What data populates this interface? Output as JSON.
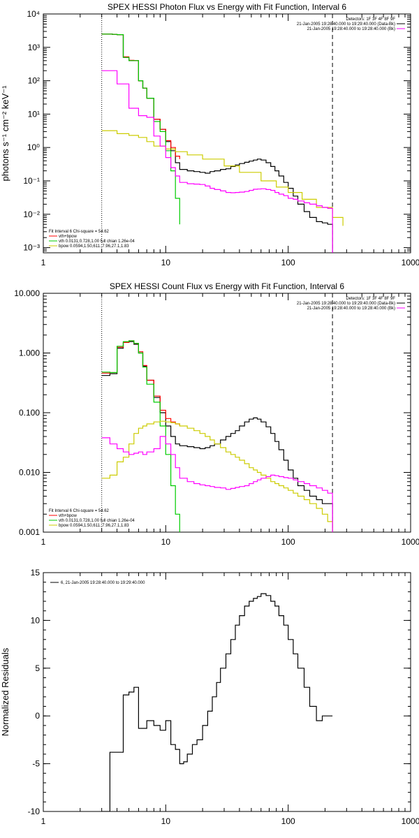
{
  "chart_data": [
    {
      "type": "line",
      "title": "SPEX HESSI Photon Flux vs Energy with Fit Function, Interval 6",
      "ylabel": "photons s⁻¹ cm⁻² keV⁻¹",
      "xlabel": "",
      "xscale": "log",
      "yscale": "log",
      "xlim": [
        1,
        1000
      ],
      "ylim": [
        0.0007,
        10000
      ],
      "x_ticks": [
        {
          "v": 1,
          "label": "1"
        },
        {
          "v": 10,
          "label": "10"
        },
        {
          "v": 100,
          "label": "100"
        },
        {
          "v": 1000,
          "label": "1000"
        }
      ],
      "y_ticks": [
        {
          "v": 0.001,
          "label": "10⁻³"
        },
        {
          "v": 0.01,
          "label": "10⁻²"
        },
        {
          "v": 0.1,
          "label": "10⁻¹"
        },
        {
          "v": 1,
          "label": "10⁰"
        },
        {
          "v": 10,
          "label": "10¹"
        },
        {
          "v": 100,
          "label": "10²"
        },
        {
          "v": 1000,
          "label": "10³"
        },
        {
          "v": 10000,
          "label": "10⁴"
        }
      ],
      "vlines": [
        {
          "x": 3,
          "style": "dotted"
        },
        {
          "x": 230,
          "style": "dashed"
        }
      ],
      "legend_tr": [
        "Detectors: 1F 3F 4F 8F 9F",
        "21-Jan-2005 19:28:40.000 to 19:29:40.000 (Data-Bk)",
        "21-Jan-2005 19:28:40.000 to 19:28:40.000 (Bk)"
      ],
      "legend_tr_colors": [
        "",
        "#000000",
        "#ff00ff"
      ],
      "legend_bl": [
        "Fit Interval 6    Chi-square = 54.62",
        "vth+bpow",
        "vth 0.0131,0.728,1.00  full chian 1.26e-04",
        "bpow 0.0594,1.50,611.,7.96,27.1,1.83"
      ],
      "legend_bl_colors": [
        "",
        "#ff0000",
        "#00cc00",
        "#cccc00"
      ],
      "series": [
        {
          "color": "#000000",
          "x": [
            3,
            3.33,
            3.67,
            4,
            4.5,
            5,
            5.5,
            6,
            6.5,
            7,
            8,
            9,
            10,
            11,
            12,
            13,
            15,
            17,
            19,
            21,
            23,
            25,
            28,
            31,
            34,
            37,
            40,
            44,
            48,
            52,
            56,
            60,
            66,
            72,
            78,
            84,
            92,
            100,
            110,
            120,
            135,
            150,
            170,
            190,
            210,
            230
          ],
          "y": [
            2500,
            2500,
            2450,
            2400,
            500,
            400,
            400,
            100,
            60,
            30,
            7,
            3.5,
            1.5,
            0.8,
            0.35,
            0.22,
            0.2,
            0.19,
            0.18,
            0.17,
            0.19,
            0.2,
            0.22,
            0.23,
            0.27,
            0.3,
            0.33,
            0.36,
            0.39,
            0.42,
            0.45,
            0.42,
            0.35,
            0.27,
            0.2,
            0.14,
            0.09,
            0.06,
            0.035,
            0.02,
            0.012,
            0.008,
            0.006,
            0.0055,
            0.005,
            0.0007
          ]
        },
        {
          "color": "#ff0000",
          "x": [
            3,
            3.33,
            3.67,
            4,
            4.5,
            5,
            5.5,
            6,
            6.5,
            7,
            8,
            9,
            10,
            11,
            12,
            13
          ],
          "y": [
            2500,
            2500,
            2450,
            2400,
            520,
            410,
            400,
            100,
            60,
            30,
            7,
            3.5,
            1.6,
            1.0,
            0.55,
            0.45
          ]
        },
        {
          "color": "#00cc00",
          "x": [
            3,
            3.33,
            3.67,
            4,
            4.5,
            5,
            5.5,
            6,
            6.5,
            7,
            8,
            9,
            10,
            11,
            12,
            13
          ],
          "y": [
            2500,
            2500,
            2450,
            2400,
            500,
            400,
            400,
            100,
            60,
            30,
            6,
            3,
            0.8,
            0.2,
            0.03,
            0.005
          ]
        },
        {
          "color": "#cccc00",
          "x": [
            3,
            4,
            5,
            6,
            7,
            8,
            10,
            12,
            15,
            20,
            30,
            40,
            60,
            80,
            100,
            130,
            170,
            230,
            280
          ],
          "y": [
            3.2,
            2.6,
            2.3,
            2.0,
            1.5,
            1.1,
            0.9,
            0.75,
            0.6,
            0.45,
            0.28,
            0.18,
            0.1,
            0.065,
            0.045,
            0.028,
            0.016,
            0.008,
            0.0045
          ]
        },
        {
          "color": "#ff00ff",
          "x": [
            3,
            4,
            5,
            6,
            7,
            8,
            9,
            10,
            11,
            12,
            13,
            15,
            17,
            19,
            21,
            23,
            25,
            28,
            31,
            34,
            37,
            40,
            44,
            48,
            52,
            56,
            60,
            66,
            72,
            78,
            84,
            92,
            100,
            110,
            120,
            135,
            150,
            170,
            190,
            210,
            230
          ],
          "y": [
            200,
            80,
            15,
            9,
            8,
            2.2,
            1.1,
            0.5,
            0.25,
            0.14,
            0.09,
            0.082,
            0.08,
            0.078,
            0.07,
            0.06,
            0.055,
            0.05,
            0.045,
            0.044,
            0.045,
            0.046,
            0.048,
            0.052,
            0.056,
            0.057,
            0.058,
            0.055,
            0.052,
            0.045,
            0.04,
            0.036,
            0.03,
            0.028,
            0.025,
            0.022,
            0.02,
            0.018,
            0.016,
            0.015,
            0.0007
          ]
        }
      ]
    },
    {
      "type": "line",
      "title": "SPEX HESSI Count Flux vs Energy with Fit Function, Interval 6",
      "ylabel": "",
      "xlabel": "",
      "xscale": "log",
      "yscale": "log",
      "xlim": [
        1,
        1000
      ],
      "ylim": [
        0.001,
        10
      ],
      "x_ticks": [
        {
          "v": 1,
          "label": "1"
        },
        {
          "v": 10,
          "label": "10"
        },
        {
          "v": 100,
          "label": "100"
        },
        {
          "v": 1000,
          "label": "1000"
        }
      ],
      "y_ticks": [
        {
          "v": 0.001,
          "label": "0.001"
        },
        {
          "v": 0.01,
          "label": "0.010"
        },
        {
          "v": 0.1,
          "label": "0.100"
        },
        {
          "v": 1,
          "label": "1.000"
        },
        {
          "v": 10,
          "label": "10.000"
        }
      ],
      "vlines": [
        {
          "x": 3,
          "style": "dotted"
        },
        {
          "x": 230,
          "style": "dashed"
        }
      ],
      "legend_tr": [
        "Detectors: 1F 3F 4F 8F 9F",
        "21-Jan-2005 19:28:40.000 to 19:29:40.000 (Data-Bk)",
        "21-Jan-2005 19:28:40.000 to 19:28:40.000 (Bk)"
      ],
      "legend_tr_colors": [
        "",
        "#000000",
        "#ff00ff"
      ],
      "legend_bl": [
        "Fit Interval 6    Chi-square = 54.62",
        "vth+bpow",
        "vth 0.0131,0.728,1.00  full chian 1.26e-04",
        "bpow 0.0594,1.50,611.,7.96,27.1,1.83"
      ],
      "legend_bl_colors": [
        "",
        "#ff0000",
        "#00cc00",
        "#cccc00"
      ],
      "series": [
        {
          "color": "#000000",
          "x": [
            3,
            3.5,
            4,
            4.5,
            5,
            5.5,
            6,
            6.5,
            7,
            8,
            9,
            10,
            11,
            12,
            13,
            15,
            17,
            19,
            21,
            23,
            25,
            28,
            31,
            34,
            37,
            40,
            44,
            48,
            52,
            56,
            60,
            66,
            72,
            78,
            84,
            92,
            100,
            110,
            120,
            135,
            150,
            170,
            190,
            210,
            230
          ],
          "y": [
            0.42,
            0.45,
            1.2,
            1.5,
            1.55,
            1.4,
            1.0,
            0.6,
            0.35,
            0.18,
            0.1,
            0.06,
            0.04,
            0.03,
            0.028,
            0.027,
            0.026,
            0.025,
            0.026,
            0.028,
            0.03,
            0.035,
            0.04,
            0.045,
            0.05,
            0.06,
            0.07,
            0.078,
            0.082,
            0.078,
            0.07,
            0.058,
            0.045,
            0.033,
            0.024,
            0.016,
            0.011,
            0.008,
            0.006,
            0.005,
            0.004,
            0.0035,
            0.003,
            0.003,
            0.001
          ]
        },
        {
          "color": "#ff0000",
          "x": [
            3,
            3.5,
            4,
            4.5,
            5,
            5.5,
            6,
            6.5,
            7,
            8,
            9,
            10,
            11,
            12,
            13
          ],
          "y": [
            0.46,
            0.47,
            1.25,
            1.5,
            1.6,
            1.45,
            1.05,
            0.62,
            0.35,
            0.19,
            0.11,
            0.08,
            0.07,
            0.065,
            0.06
          ]
        },
        {
          "color": "#00cc00",
          "x": [
            3,
            3.5,
            4,
            4.5,
            5,
            5.5,
            6,
            6.5,
            7,
            8,
            9,
            10,
            11,
            12,
            13
          ],
          "y": [
            0.48,
            0.47,
            1.3,
            1.55,
            1.6,
            1.45,
            1.0,
            0.58,
            0.3,
            0.15,
            0.06,
            0.02,
            0.006,
            0.002,
            0.001
          ]
        },
        {
          "color": "#cccc00",
          "x": [
            3,
            3.5,
            4,
            4.5,
            5,
            5.5,
            6,
            6.5,
            7,
            8,
            9,
            10,
            11,
            12,
            13,
            15,
            17,
            19,
            21,
            23,
            25,
            28,
            31,
            34,
            37,
            40,
            44,
            48,
            52,
            56,
            60,
            66,
            72,
            78,
            84,
            92,
            100,
            110,
            120,
            135,
            150,
            170,
            190,
            210,
            230
          ],
          "y": [
            0.008,
            0.009,
            0.015,
            0.018,
            0.03,
            0.045,
            0.055,
            0.06,
            0.065,
            0.07,
            0.072,
            0.07,
            0.068,
            0.065,
            0.06,
            0.055,
            0.05,
            0.045,
            0.04,
            0.035,
            0.03,
            0.026,
            0.022,
            0.02,
            0.018,
            0.016,
            0.014,
            0.012,
            0.011,
            0.01,
            0.009,
            0.008,
            0.007,
            0.0065,
            0.006,
            0.0055,
            0.005,
            0.0045,
            0.004,
            0.0035,
            0.003,
            0.0025,
            0.002,
            0.0015,
            0.001
          ]
        },
        {
          "color": "#ff00ff",
          "x": [
            3,
            3.5,
            4,
            4.5,
            5,
            5.5,
            6,
            6.5,
            7,
            8,
            9,
            10,
            11,
            12,
            13,
            15,
            17,
            19,
            21,
            23,
            25,
            28,
            31,
            34,
            37,
            40,
            44,
            48,
            52,
            56,
            60,
            66,
            72,
            78,
            84,
            92,
            100,
            110,
            120,
            135,
            150,
            170,
            190,
            210,
            230
          ],
          "y": [
            0.038,
            0.03,
            0.025,
            0.022,
            0.02,
            0.021,
            0.022,
            0.02,
            0.022,
            0.025,
            0.04,
            0.03,
            0.02,
            0.012,
            0.008,
            0.007,
            0.0065,
            0.0062,
            0.006,
            0.0058,
            0.0056,
            0.0055,
            0.0052,
            0.0054,
            0.0056,
            0.0058,
            0.006,
            0.0065,
            0.007,
            0.0075,
            0.008,
            0.0085,
            0.009,
            0.0088,
            0.0085,
            0.0082,
            0.008,
            0.0075,
            0.007,
            0.0065,
            0.006,
            0.0055,
            0.005,
            0.0045,
            0.001
          ]
        }
      ]
    },
    {
      "type": "line",
      "title": "",
      "ylabel": "Normalized Residuals",
      "xlabel": "",
      "xscale": "log",
      "yscale": "linear",
      "xlim": [
        1,
        1000
      ],
      "ylim": [
        -10,
        15
      ],
      "x_ticks": [
        {
          "v": 1,
          "label": "1"
        },
        {
          "v": 10,
          "label": "10"
        },
        {
          "v": 100,
          "label": "100"
        },
        {
          "v": 1000,
          "label": "1000"
        }
      ],
      "y_ticks": [
        {
          "v": -10,
          "label": "-10"
        },
        {
          "v": -5,
          "label": "-5"
        },
        {
          "v": 0,
          "label": "0"
        },
        {
          "v": 5,
          "label": "5"
        },
        {
          "v": 10,
          "label": "10"
        },
        {
          "v": 15,
          "label": "15"
        }
      ],
      "vlines": [],
      "legend_tr": [],
      "legend_tr_colors": [],
      "legend_bl": [],
      "legend_bl_colors": [],
      "legend_tl": "6, 21-Jan-2005 19:28:40.000 to 19:29:40.000",
      "series": [
        {
          "color": "#000000",
          "x": [
            3,
            3.5,
            4,
            4.5,
            5,
            5.5,
            6,
            6.5,
            7,
            8,
            9,
            10,
            11,
            12,
            13,
            14,
            15,
            16.5,
            18,
            20,
            22,
            24,
            26,
            28,
            31,
            34,
            37,
            40,
            44,
            48,
            52,
            56,
            60,
            66,
            72,
            78,
            84,
            92,
            100,
            110,
            120,
            135,
            150,
            170,
            190,
            210,
            230
          ],
          "y": [
            -10,
            -3.8,
            -3.8,
            2.2,
            2.5,
            3.0,
            -1.3,
            -1.3,
            -0.5,
            -1.0,
            -1.5,
            -0.5,
            -3.0,
            -3.5,
            -5.0,
            -4.8,
            -4.0,
            -3.0,
            -2.5,
            -1.0,
            0.5,
            2.0,
            3.5,
            5.0,
            6.5,
            8.0,
            9.5,
            10.5,
            11.5,
            12.0,
            12.3,
            12.5,
            12.8,
            12.6,
            12.0,
            11.5,
            10.5,
            9.5,
            8.0,
            6.5,
            5.0,
            3.0,
            1.0,
            -0.5,
            0,
            0,
            0
          ]
        }
      ]
    }
  ]
}
